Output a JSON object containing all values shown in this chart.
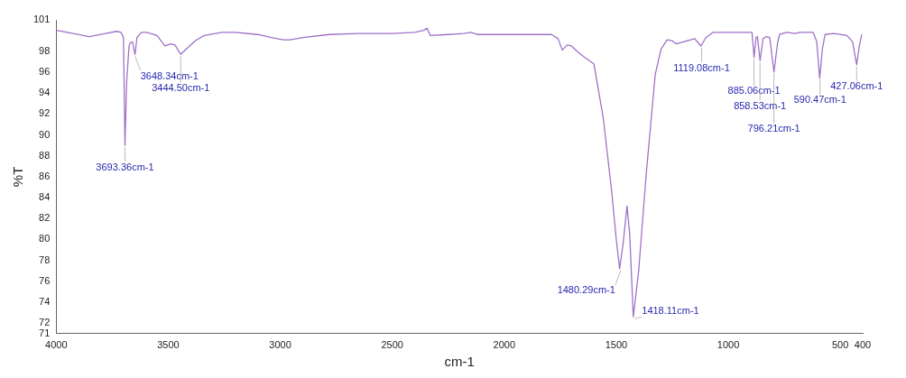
{
  "chart_data": {
    "type": "line",
    "xlabel": "cm-1",
    "ylabel": "%T",
    "xlim": [
      4000,
      400
    ],
    "xticks": [
      4000,
      3500,
      3000,
      2500,
      2000,
      1500,
      1000,
      500,
      400
    ],
    "ylim": [
      71,
      101
    ],
    "yticks": [
      71,
      72,
      74,
      76,
      78,
      80,
      82,
      84,
      86,
      88,
      90,
      92,
      94,
      96,
      98,
      101
    ],
    "grid": false,
    "legend": false,
    "marker": "none",
    "line_style": "solid",
    "series": [
      {
        "color": "#a070c8",
        "x": [
          4000,
          3950,
          3853,
          3780,
          3731,
          3710,
          3700,
          3693.36,
          3686,
          3675,
          3670,
          3660,
          3648.34,
          3640,
          3620,
          3596,
          3550,
          3515,
          3490,
          3470,
          3444.5,
          3420,
          3380,
          3340,
          3260,
          3200,
          3100,
          3040,
          2985,
          2956,
          2900,
          2781,
          2650,
          2500,
          2400,
          2360,
          2345,
          2330,
          2250,
          2180,
          2149,
          2120,
          2050,
          1950,
          1850,
          1790,
          1760,
          1741,
          1720,
          1700,
          1670,
          1640,
          1600,
          1558,
          1520,
          1500,
          1485,
          1470,
          1452,
          1440,
          1424,
          1400,
          1367,
          1326,
          1300,
          1273,
          1250,
          1232,
          1200,
          1150,
          1122,
          1100,
          1069,
          1000,
          950,
          894,
          885,
          876,
          870,
          858,
          845,
          830,
          815,
          796,
          780,
          771,
          740,
          702,
          680,
          650,
          621,
          605,
          592,
          580,
          568,
          530,
          500,
          470,
          445,
          427,
          415,
          404
        ],
        "values": [
          100.0,
          99.8,
          99.4,
          99.7,
          99.9,
          99.8,
          99.3,
          89.0,
          95,
          98.5,
          98.8,
          98.9,
          97.7,
          99.3,
          99.8,
          99.8,
          99.5,
          98.5,
          98.7,
          98.6,
          97.7,
          98.2,
          99.0,
          99.5,
          99.8,
          99.8,
          99.6,
          99.3,
          99.1,
          99.1,
          99.3,
          99.6,
          99.7,
          99.7,
          99.8,
          100.0,
          100.2,
          99.5,
          99.6,
          99.7,
          99.8,
          99.6,
          99.6,
          99.6,
          99.6,
          99.6,
          99.2,
          98.1,
          98.6,
          98.5,
          97.9,
          97.4,
          96.8,
          91.6,
          84.5,
          80.0,
          77.2,
          79.5,
          83.2,
          80.5,
          72.6,
          77,
          86.1,
          95.8,
          98.2,
          99.1,
          99.0,
          98.7,
          98.9,
          99.2,
          98.5,
          99.3,
          99.8,
          99.8,
          99.8,
          99.8,
          97.4,
          99.3,
          99.4,
          97.1,
          99.2,
          99.4,
          99.3,
          96.0,
          98.8,
          99.6,
          99.8,
          99.7,
          99.8,
          99.8,
          99.8,
          98.9,
          95.4,
          98.2,
          99.6,
          99.7,
          99.6,
          99.5,
          98.9,
          96.7,
          98.5,
          99.6
        ]
      }
    ],
    "annotations": [
      {
        "text": "3693.36cm-1",
        "x": 3693.36,
        "y": 89.0
      },
      {
        "text": "3648.34cm-1",
        "x": 3648.34,
        "y": 97.7
      },
      {
        "text": "3444.50cm-1",
        "x": 3444.5,
        "y": 97.7
      },
      {
        "text": "1480.29cm-1",
        "x": 1480.29,
        "y": 77.2
      },
      {
        "text": "1418.11cm-1",
        "x": 1418.11,
        "y": 72.6
      },
      {
        "text": "1119.08cm-1",
        "x": 1119.08,
        "y": 98.5
      },
      {
        "text": "885.06cm-1",
        "x": 885.06,
        "y": 97.4
      },
      {
        "text": "858.53cm-1",
        "x": 858.53,
        "y": 97.1
      },
      {
        "text": "796.21cm-1",
        "x": 796.21,
        "y": 96.0
      },
      {
        "text": "590.47cm-1",
        "x": 590.47,
        "y": 95.4
      },
      {
        "text": "427.06cm-1",
        "x": 427.06,
        "y": 96.7
      }
    ]
  }
}
